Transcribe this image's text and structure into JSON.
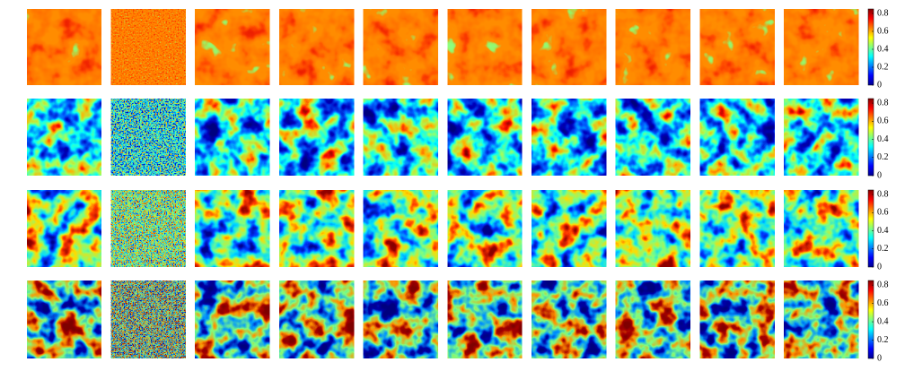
{
  "rows": [
    {
      "colorbar": {
        "lim": [
          0,
          0.85
        ],
        "ticks": [
          0,
          0.2,
          0.4,
          0.6,
          0.8
        ]
      }
    },
    {
      "colorbar": {
        "lim": [
          0,
          0.85
        ],
        "ticks": [
          0,
          0.2,
          0.4,
          0.6,
          0.8
        ]
      }
    },
    {
      "colorbar": {
        "lim": [
          0,
          0.85
        ],
        "ticks": [
          0,
          0.2,
          0.4,
          0.6,
          0.8
        ]
      }
    },
    {
      "colorbar": {
        "lim": [
          0,
          0.85
        ],
        "ticks": [
          0,
          0.2,
          0.4,
          0.6,
          0.8
        ]
      }
    }
  ]
}
